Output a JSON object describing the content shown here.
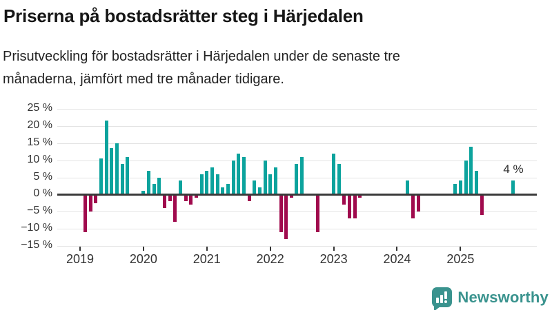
{
  "header": {
    "title": "Priserna på bostadsrätter steg i Härjedalen",
    "subtitle": "Prisutveckling för bostadsrätter i Härjedalen under de senaste tre månaderna, jämfört med tre månader tidigare.",
    "subtitle_lines": [
      "Prisutveckling för bostadsrätter i Härjedalen under de senaste tre",
      "månaderna, jämfört med tre månader tidigare."
    ]
  },
  "chart_data": {
    "type": "bar",
    "title": "Priserna på bostadsrätter steg i Härjedalen",
    "subtitle": "Prisutveckling för bostadsrätter i Härjedalen under de senaste tre månaderna, jämfört med tre månader tidigare.",
    "xlabel": "",
    "ylabel": "",
    "unit": "%",
    "frequency": "monthly",
    "start_month": "2019-01",
    "ylim": [
      -15,
      25
    ],
    "grid": true,
    "legend": "none",
    "yticks": [
      25,
      20,
      15,
      10,
      5,
      0,
      -5,
      -10,
      -15
    ],
    "ytick_labels": [
      "25 %",
      "20 %",
      "15 %",
      "10 %",
      "5 %",
      "0 %",
      "−5 %",
      "−10 %",
      "−15 %"
    ],
    "year_ticks": [
      "2019",
      "2020",
      "2021",
      "2022",
      "2023",
      "2024",
      "2025"
    ],
    "values": [
      null,
      -11,
      -5,
      -2.5,
      10.5,
      21.5,
      13.5,
      15,
      9,
      11,
      null,
      null,
      1,
      7,
      3,
      5,
      -4,
      -2,
      -8,
      4,
      -2,
      -3,
      -1,
      6,
      7,
      8,
      6,
      2,
      3,
      10,
      12,
      11,
      -2,
      4,
      2,
      10,
      6,
      8,
      -11,
      -13,
      -1,
      9,
      11,
      null,
      null,
      -11,
      null,
      null,
      12,
      9,
      -3,
      -7,
      -7,
      -1,
      null,
      null,
      null,
      null,
      null,
      null,
      null,
      null,
      4,
      -7,
      -5,
      null,
      null,
      null,
      null,
      null,
      null,
      3,
      4,
      10,
      14,
      7,
      -6,
      null,
      null,
      null,
      null,
      null,
      4
    ],
    "annotation": {
      "text": "4 %",
      "month_index": 82,
      "value": 4
    },
    "colors": {
      "positive": "#0ca39d",
      "negative": "#a00a4d",
      "gridline": "#e3e3e3",
      "axis": "#3a3a3a"
    }
  },
  "footer": {
    "brand": "Newsworthy",
    "logo_icon": "newsworthy-speech-bubble-bar-chart-icon",
    "brand_color": "#3a938e"
  }
}
